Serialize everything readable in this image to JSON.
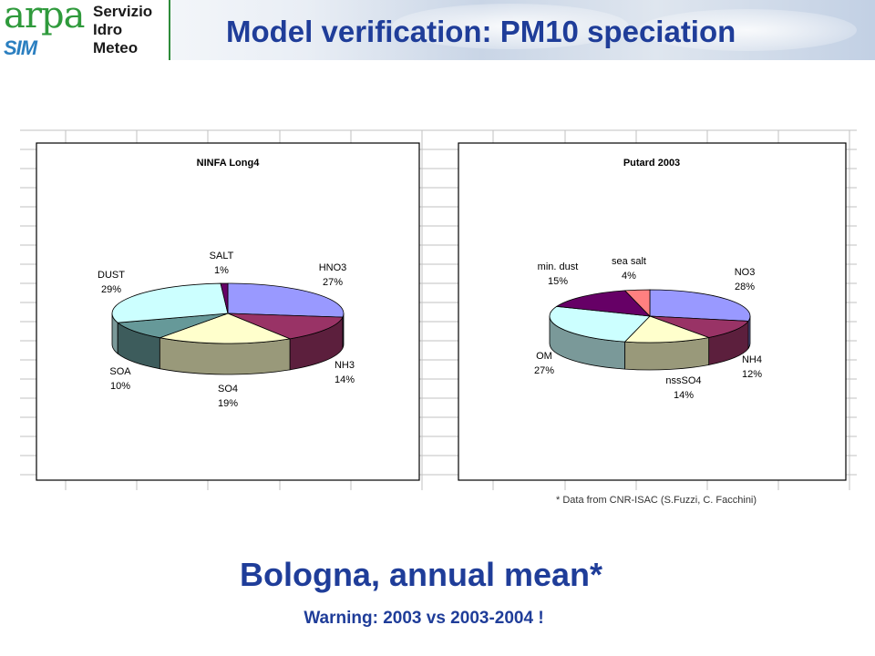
{
  "header": {
    "logo": {
      "arpa": "arpa",
      "sim": "SIM",
      "lines": [
        "Servizio",
        "Idro",
        "Meteo"
      ]
    },
    "title": "Model verification: PM10 speciation"
  },
  "footnote": "* Data from CNR-ISAC  (S.Fuzzi, C. Facchini)",
  "subtitle": "Bologna, annual mean*",
  "warning": "Warning: 2003 vs 2003-2004 !",
  "colors": {
    "accent": "#1f3d99",
    "slice_blue": "#9999ff",
    "slice_maroon": "#993366",
    "slice_cream": "#ffffcc",
    "slice_teal": "#669999",
    "slice_cyan": "#ccffff",
    "slice_purple": "#660066",
    "slice_salmon": "#ff8080"
  },
  "chart_data": [
    {
      "type": "pie",
      "title": "NINFA Long4",
      "slices": [
        {
          "label": "HNO3",
          "pct": "27%",
          "value": 27,
          "color": "#9999ff"
        },
        {
          "label": "NH3",
          "pct": "14%",
          "value": 14,
          "color": "#993366"
        },
        {
          "label": "SO4",
          "pct": "19%",
          "value": 19,
          "color": "#ffffcc"
        },
        {
          "label": "SOA",
          "pct": "10%",
          "value": 10,
          "color": "#669999"
        },
        {
          "label": "DUST",
          "pct": "29%",
          "value": 29,
          "color": "#ccffff"
        },
        {
          "label": "SALT",
          "pct": "1%",
          "value": 1,
          "color": "#660066"
        }
      ]
    },
    {
      "type": "pie",
      "title": "Putard 2003",
      "slices": [
        {
          "label": "NO3",
          "pct": "28%",
          "value": 28,
          "color": "#9999ff"
        },
        {
          "label": "NH4",
          "pct": "12%",
          "value": 12,
          "color": "#993366"
        },
        {
          "label": "nssSO4",
          "pct": "14%",
          "value": 14,
          "color": "#ffffcc"
        },
        {
          "label": "OM",
          "pct": "27%",
          "value": 27,
          "color": "#ccffff"
        },
        {
          "label": "min. dust",
          "pct": "15%",
          "value": 15,
          "color": "#660066"
        },
        {
          "label": "sea salt",
          "pct": "4%",
          "value": 4,
          "color": "#ff8080"
        }
      ]
    }
  ]
}
